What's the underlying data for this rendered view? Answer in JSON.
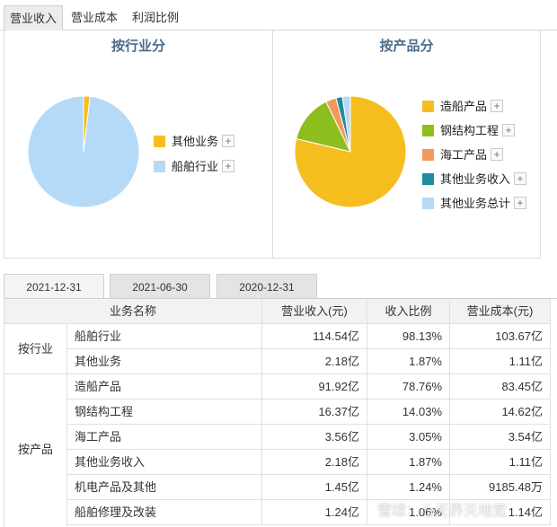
{
  "top_tabs": [
    "营业收入",
    "营业成本",
    "利润比例"
  ],
  "industry_panel": {
    "title": "按行业分",
    "chart_data": {
      "type": "pie",
      "labels": [
        "其他业务",
        "船舶行业"
      ],
      "values": [
        1.87,
        98.13
      ],
      "colors": [
        "#f5be1e",
        "#b5daf7"
      ]
    }
  },
  "product_panel": {
    "title": "按产品分",
    "chart_data": {
      "type": "pie",
      "labels": [
        "造船产品",
        "钢结构工程",
        "海工产品",
        "其他业务收入",
        "其他业务总计"
      ],
      "values": [
        78.76,
        14.03,
        3.05,
        1.87,
        2.29
      ],
      "colors": [
        "#f5be1e",
        "#8ebe1e",
        "#f39a5a",
        "#1f8c99",
        "#b5daf7"
      ]
    }
  },
  "legend_plus": "+",
  "date_tabs": [
    "2021-12-31",
    "2021-06-30",
    "2020-12-31"
  ],
  "table": {
    "headers": [
      "业务名称",
      "营业收入(元)",
      "收入比例",
      "营业成本(元)"
    ],
    "groups": [
      {
        "label": "按行业",
        "rows": [
          [
            "船舶行业",
            "114.54亿",
            "98.13%",
            "103.67亿"
          ],
          [
            "其他业务",
            "2.18亿",
            "1.87%",
            "1.11亿"
          ]
        ]
      },
      {
        "label": "按产品",
        "rows": [
          [
            "造船产品",
            "91.92亿",
            "78.76%",
            "83.45亿"
          ],
          [
            "钢结构工程",
            "16.37亿",
            "14.03%",
            "14.62亿"
          ],
          [
            "海工产品",
            "3.56亿",
            "3.05%",
            "3.54亿"
          ],
          [
            "其他业务收入",
            "2.18亿",
            "1.87%",
            "1.11亿"
          ],
          [
            "机电产品及其他",
            "1.45亿",
            "1.24%",
            "9185.48万"
          ],
          [
            "船舶修理及改装",
            "1.24亿",
            "1.06%",
            "1.14亿"
          ]
        ]
      }
    ]
  },
  "watermark": "雪球：心无界天地宽"
}
